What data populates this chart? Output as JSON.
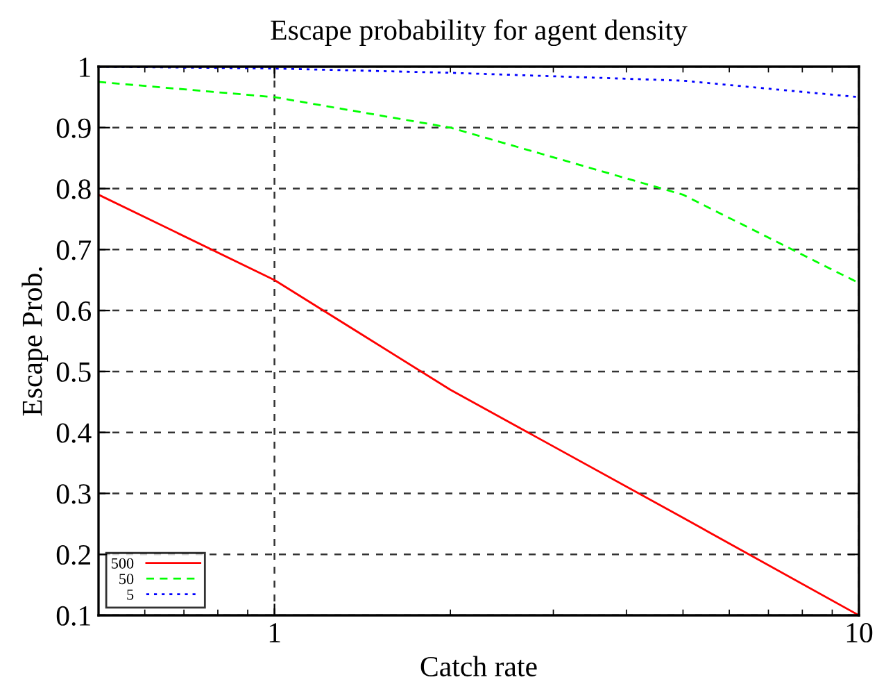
{
  "chart_data": {
    "type": "line",
    "title": "Escape probability for agent density",
    "xlabel": "Catch rate",
    "ylabel": "Escape Prob.",
    "log": "x",
    "xlim": [
      0.5,
      10
    ],
    "xticks": [
      1,
      10
    ],
    "ylim": [
      0.1,
      1
    ],
    "yticks": [
      0.1,
      0.2,
      0.3,
      0.4,
      0.5,
      0.6,
      0.7,
      0.8,
      0.9,
      1
    ],
    "x": [
      0.5,
      1,
      2,
      5,
      10
    ],
    "grid": true,
    "legend": "bottom left",
    "series": [
      {
        "name": "500",
        "color": "#ff0000",
        "line_style": "solid",
        "values": [
          0.79,
          0.65,
          0.47,
          0.26,
          0.1
        ]
      },
      {
        "name": "50",
        "color": "#00ff00",
        "line_style": "dashed",
        "values": [
          0.975,
          0.95,
          0.9,
          0.79,
          0.645
        ]
      },
      {
        "name": "5",
        "color": "#0000ff",
        "line_style": "dotted",
        "values": [
          1.0,
          0.997,
          0.99,
          0.977,
          0.95
        ]
      }
    ]
  }
}
